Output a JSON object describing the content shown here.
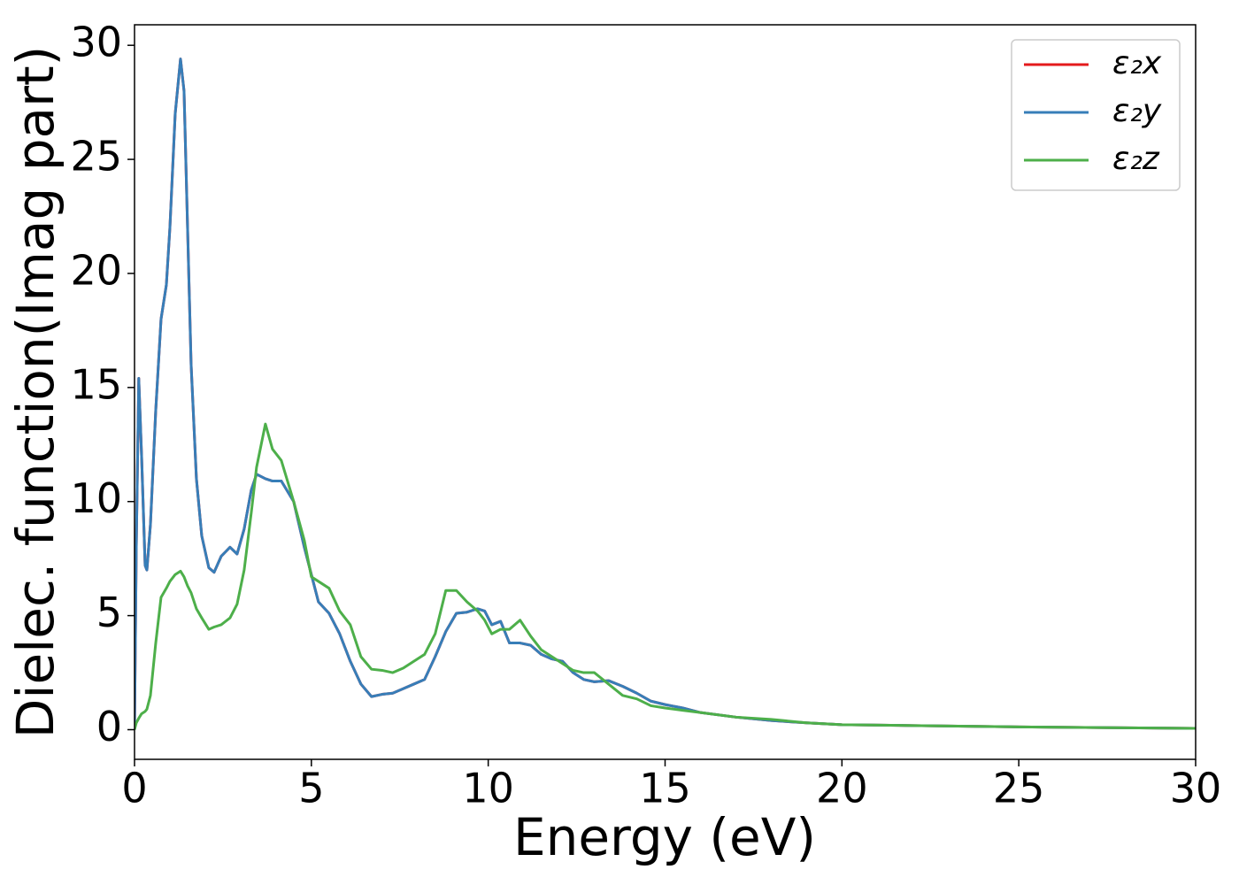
{
  "chart_data": {
    "type": "line",
    "xlabel": "Energy (eV)",
    "ylabel": "Dielec. function(Imag part)",
    "xlim": [
      0,
      30
    ],
    "ylim": [
      -1.3,
      30.9
    ],
    "xticks": [
      0,
      5,
      10,
      15,
      20,
      25,
      30
    ],
    "yticks": [
      0,
      5,
      10,
      15,
      20,
      25,
      30
    ],
    "legend": "upper right",
    "x": [
      0,
      0.05,
      0.12,
      0.2,
      0.3,
      0.35,
      0.45,
      0.6,
      0.75,
      0.9,
      1.0,
      1.15,
      1.3,
      1.4,
      1.5,
      1.6,
      1.75,
      1.9,
      2.1,
      2.25,
      2.45,
      2.7,
      2.9,
      3.1,
      3.3,
      3.45,
      3.7,
      3.9,
      4.15,
      4.5,
      4.8,
      5.0,
      5.2,
      5.5,
      5.8,
      6.1,
      6.4,
      6.7,
      7.0,
      7.3,
      7.6,
      7.9,
      8.2,
      8.5,
      8.8,
      9.1,
      9.4,
      9.7,
      9.9,
      10.1,
      10.35,
      10.6,
      10.9,
      11.2,
      11.5,
      11.8,
      12.1,
      12.4,
      12.7,
      13.0,
      13.4,
      13.8,
      14.2,
      14.6,
      15.0,
      15.5,
      16,
      17,
      18,
      19,
      20,
      22,
      25,
      28,
      30
    ],
    "series": [
      {
        "name": "ε₂x",
        "color": "#e41a1c",
        "values": [
          0,
          8,
          15.4,
          12,
          7.2,
          7.0,
          9,
          14,
          18,
          19.5,
          22,
          27,
          29.4,
          28,
          22,
          16,
          11,
          8.5,
          7.1,
          6.9,
          7.6,
          8.0,
          7.7,
          8.8,
          10.5,
          11.2,
          11.0,
          10.9,
          10.9,
          10.0,
          8.0,
          6.8,
          5.6,
          5.1,
          4.2,
          3.0,
          2.0,
          1.45,
          1.55,
          1.6,
          1.8,
          2.0,
          2.2,
          3.2,
          4.3,
          5.1,
          5.15,
          5.3,
          5.2,
          4.6,
          4.75,
          3.8,
          3.8,
          3.7,
          3.3,
          3.1,
          3.0,
          2.5,
          2.2,
          2.1,
          2.15,
          1.9,
          1.6,
          1.25,
          1.1,
          0.95,
          0.75,
          0.55,
          0.4,
          0.3,
          0.22,
          0.18,
          0.12,
          0.08,
          0.06
        ]
      },
      {
        "name": "ε₂y",
        "color": "#377eb8",
        "values": [
          0,
          8,
          15.4,
          12,
          7.2,
          7.0,
          9,
          14,
          18,
          19.5,
          22,
          27,
          29.4,
          28,
          22,
          16,
          11,
          8.5,
          7.1,
          6.9,
          7.6,
          8.0,
          7.7,
          8.8,
          10.5,
          11.2,
          11.0,
          10.9,
          10.9,
          10.0,
          8.0,
          6.8,
          5.6,
          5.1,
          4.2,
          3.0,
          2.0,
          1.45,
          1.55,
          1.6,
          1.8,
          2.0,
          2.2,
          3.2,
          4.3,
          5.1,
          5.15,
          5.3,
          5.2,
          4.6,
          4.75,
          3.8,
          3.8,
          3.7,
          3.3,
          3.1,
          3.0,
          2.5,
          2.2,
          2.1,
          2.15,
          1.9,
          1.6,
          1.25,
          1.1,
          0.95,
          0.75,
          0.55,
          0.4,
          0.3,
          0.22,
          0.18,
          0.12,
          0.08,
          0.06
        ]
      },
      {
        "name": "ε₂z",
        "color": "#4daf4a",
        "values": [
          0,
          0.3,
          0.5,
          0.7,
          0.8,
          0.9,
          1.5,
          3.8,
          5.8,
          6.2,
          6.5,
          6.8,
          6.95,
          6.7,
          6.3,
          6.0,
          5.3,
          4.9,
          4.4,
          4.5,
          4.6,
          4.9,
          5.5,
          7.0,
          9.5,
          11.5,
          13.4,
          12.3,
          11.8,
          10.0,
          8.3,
          6.7,
          6.5,
          6.2,
          5.2,
          4.6,
          3.2,
          2.65,
          2.6,
          2.5,
          2.7,
          3.0,
          3.3,
          4.2,
          6.1,
          6.1,
          5.6,
          5.2,
          4.8,
          4.2,
          4.4,
          4.4,
          4.8,
          4.1,
          3.5,
          3.2,
          2.9,
          2.6,
          2.5,
          2.5,
          2.0,
          1.5,
          1.35,
          1.05,
          0.95,
          0.85,
          0.75,
          0.55,
          0.45,
          0.3,
          0.22,
          0.18,
          0.12,
          0.08,
          0.06
        ]
      }
    ]
  }
}
